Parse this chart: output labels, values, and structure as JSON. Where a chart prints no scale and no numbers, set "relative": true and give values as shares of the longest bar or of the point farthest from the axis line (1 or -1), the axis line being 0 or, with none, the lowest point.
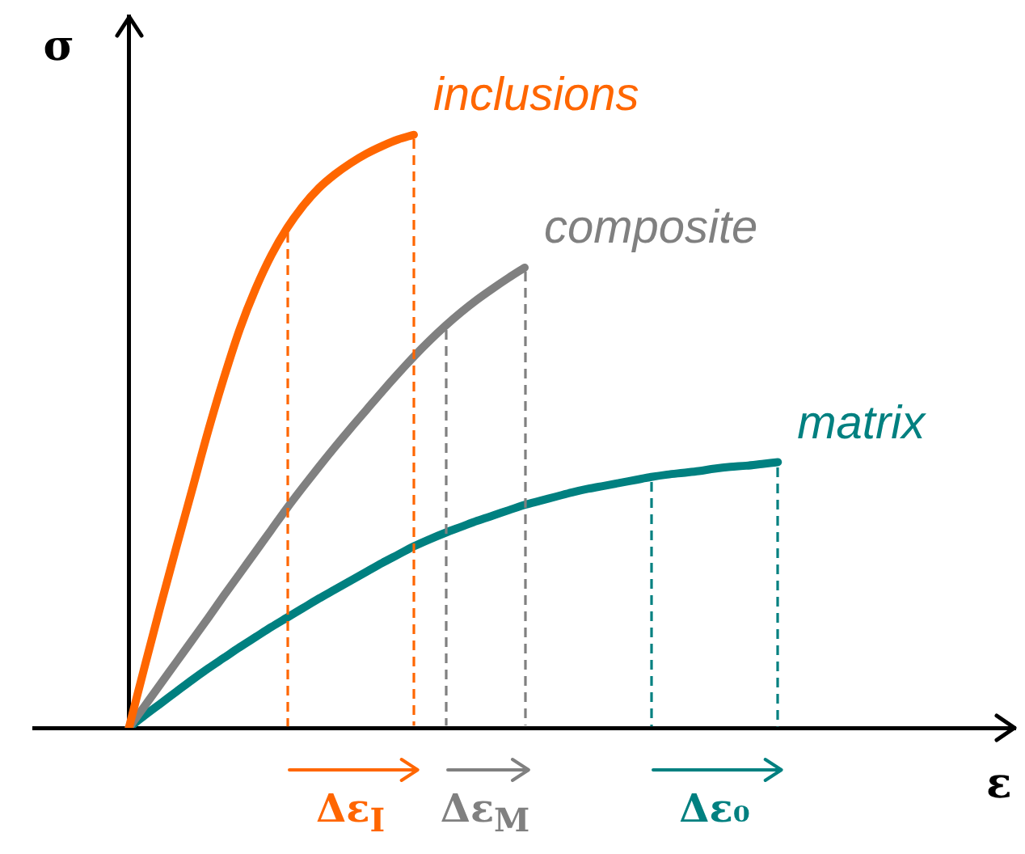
{
  "chart_data": {
    "type": "line",
    "relative": true,
    "xlabel": "ε",
    "ylabel": "σ",
    "categories": [
      null,
      null,
      null,
      null,
      null,
      null,
      null,
      null,
      null,
      null,
      null,
      null,
      null,
      null,
      null,
      null,
      null,
      null,
      null,
      null,
      null,
      null,
      null,
      null,
      null,
      null,
      null,
      null,
      null,
      null,
      null,
      null,
      null,
      null,
      null,
      null,
      null,
      null,
      null,
      null,
      null,
      null,
      null,
      null,
      null,
      null,
      null,
      null,
      null,
      null,
      null,
      null,
      null,
      null,
      null,
      null,
      null,
      null,
      null,
      null,
      null,
      null,
      null
    ],
    "series": [
      {
        "name": "inclusions",
        "color": "#ff6600",
        "values": [
          null,
          null,
          null,
          null,
          null,
          null,
          0,
          0.104,
          0.206,
          0.305,
          0.402,
          0.5,
          0.59,
          0.672,
          0.74,
          0.797,
          0.843,
          0.88,
          0.91,
          0.933,
          0.952,
          0.968,
          0.981,
          0.992,
          1,
          null,
          null,
          null,
          null,
          null,
          null,
          null,
          null,
          null,
          null,
          null,
          null,
          null,
          null,
          null,
          null,
          null,
          null,
          null,
          null,
          null,
          null,
          null,
          null,
          null,
          null,
          null,
          null,
          null,
          null,
          null,
          null,
          null,
          null,
          null,
          null,
          null,
          null
        ]
      },
      {
        "name": "composite",
        "color": "#808080",
        "values": [
          null,
          null,
          null,
          null,
          null,
          null,
          0,
          0.037,
          0.074,
          0.111,
          0.148,
          0.185,
          0.223,
          0.26,
          0.297,
          0.334,
          0.371,
          0.406,
          0.44,
          0.473,
          0.505,
          0.536,
          0.567,
          0.597,
          0.626,
          0.653,
          0.678,
          0.701,
          0.722,
          0.741,
          0.759,
          0.776,
          null,
          null,
          null,
          null,
          null,
          null,
          null,
          null,
          null,
          null,
          null,
          null,
          null,
          null,
          null,
          null,
          null,
          null,
          null,
          null,
          null,
          null,
          null,
          null,
          null,
          null,
          null,
          null,
          null,
          null,
          null
        ]
      },
      {
        "name": "matrix",
        "color": "#008080",
        "values": [
          null,
          null,
          null,
          null,
          null,
          null,
          0,
          0.021,
          0.041,
          0.061,
          0.081,
          0.1,
          0.118,
          0.136,
          0.153,
          0.17,
          0.186,
          0.202,
          0.218,
          0.233,
          0.248,
          0.263,
          0.278,
          0.292,
          0.306,
          0.318,
          0.329,
          0.339,
          0.349,
          0.358,
          0.367,
          0.376,
          0.383,
          0.39,
          0.397,
          0.403,
          0.408,
          0.413,
          0.418,
          0.423,
          0.427,
          0.43,
          0.433,
          0.437,
          0.44,
          0.442,
          0.445,
          0.448,
          null,
          null,
          null,
          null,
          null,
          null,
          null,
          null,
          null,
          null,
          null,
          null,
          null,
          null,
          null
        ]
      }
    ],
    "annotations": [
      "Δε$_{I}$",
      "Δε$_{M}$",
      "Δε₀"
    ]
  }
}
